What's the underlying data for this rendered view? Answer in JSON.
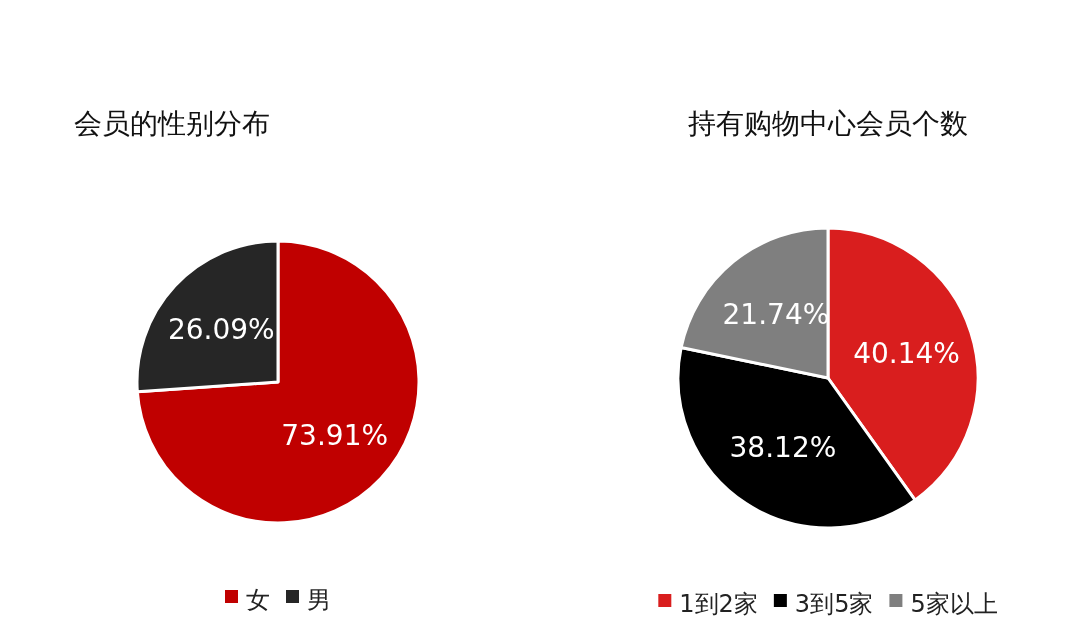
{
  "chart_data": [
    {
      "type": "pie",
      "title": "会员的性别分布",
      "categories": [
        "女",
        "男"
      ],
      "values": [
        73.91,
        26.09
      ],
      "colors": [
        "#c00000",
        "#262626"
      ],
      "value_labels": [
        "73.91%",
        "26.09%"
      ],
      "legend": "bottom"
    },
    {
      "type": "pie",
      "title": "持有购物中心会员个数",
      "categories": [
        "1到2家",
        "3到5家",
        "5家以上"
      ],
      "values": [
        40.14,
        38.12,
        21.74
      ],
      "colors": [
        "#d91e1e",
        "#000000",
        "#7f7f7f"
      ],
      "value_labels": [
        "40.14%",
        "38.12%",
        "21.74%"
      ],
      "legend": "bottom"
    }
  ]
}
